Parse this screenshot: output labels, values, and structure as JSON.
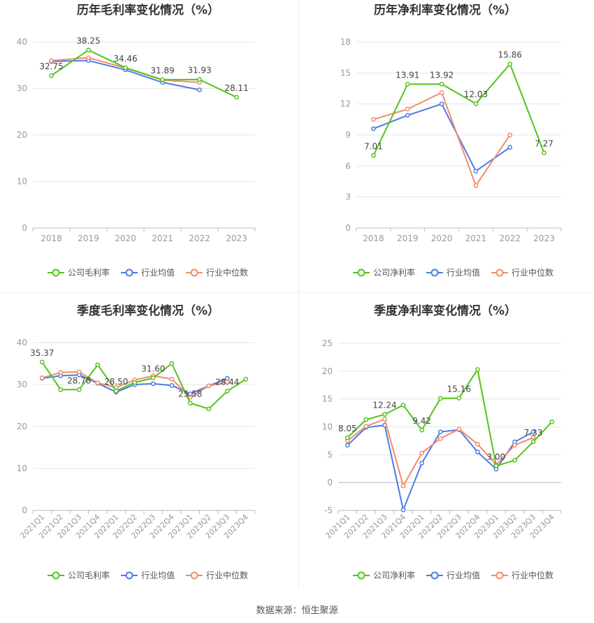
{
  "source": "数据来源：恒生聚源",
  "colors": {
    "company": "#52c41a",
    "avg": "#4b7be5",
    "median": "#f08c6a",
    "grid": "#e6e6e6",
    "axis": "#999999",
    "title": "#333333"
  },
  "chart_data": [
    {
      "type": "line",
      "title": "历年毛利率变化情况（%）",
      "categories": [
        "2018",
        "2019",
        "2020",
        "2021",
        "2022",
        "2023"
      ],
      "ylim": [
        0,
        40
      ],
      "yticks": [
        0,
        10,
        20,
        30,
        40
      ],
      "legend_placement": "bottom",
      "series": [
        {
          "name": "公司毛利率",
          "values": [
            32.75,
            38.25,
            34.46,
            31.89,
            31.93,
            28.11
          ],
          "labels": [
            "32.75",
            "38.25",
            "34.46",
            "31.89",
            "31.93",
            "28.11"
          ]
        },
        {
          "name": "行业均值",
          "values": [
            35.8,
            36.0,
            34.0,
            31.3,
            29.7,
            null
          ]
        },
        {
          "name": "行业中位数",
          "values": [
            36.0,
            36.6,
            34.4,
            31.8,
            31.3,
            null
          ]
        }
      ]
    },
    {
      "type": "line",
      "title": "历年净利率变化情况（%）",
      "categories": [
        "2018",
        "2019",
        "2020",
        "2021",
        "2022",
        "2023"
      ],
      "ylim": [
        0,
        18
      ],
      "yticks": [
        0,
        3,
        6,
        9,
        12,
        15,
        18
      ],
      "legend_placement": "bottom",
      "series": [
        {
          "name": "公司净利率",
          "values": [
            7.01,
            13.91,
            13.92,
            12.03,
            15.86,
            7.27
          ],
          "labels": [
            "7.01",
            "13.91",
            "13.92",
            "12.03",
            "15.86",
            "7.27"
          ]
        },
        {
          "name": "行业均值",
          "values": [
            9.6,
            10.9,
            12.0,
            5.5,
            7.8,
            null
          ]
        },
        {
          "name": "行业中位数",
          "values": [
            10.5,
            11.5,
            13.1,
            4.1,
            9.0,
            null
          ]
        }
      ]
    },
    {
      "type": "line",
      "title": "季度毛利率变化情况（%）",
      "categories": [
        "2021Q1",
        "2021Q2",
        "2021Q3",
        "2021Q4",
        "2022Q1",
        "2022Q2",
        "2022Q3",
        "2022Q4",
        "2023Q1",
        "2023Q2",
        "2023Q3",
        "2023Q4"
      ],
      "ylim": [
        0,
        40
      ],
      "yticks": [
        0,
        10,
        20,
        30,
        40
      ],
      "legend_placement": "bottom",
      "series": [
        {
          "name": "公司毛利率",
          "values": [
            35.37,
            28.8,
            28.78,
            34.7,
            28.5,
            30.5,
            31.6,
            35.0,
            25.58,
            24.2,
            28.44,
            31.3
          ],
          "labels": [
            "35.37",
            "",
            "28.78",
            "",
            "28.50",
            "",
            "31.60",
            "",
            "25.58",
            "",
            "28.44",
            ""
          ]
        },
        {
          "name": "行业均值",
          "values": [
            31.5,
            32.1,
            32.3,
            30.3,
            28.2,
            30.0,
            30.2,
            29.8,
            27.8,
            29.7,
            31.5,
            null
          ]
        },
        {
          "name": "行业中位数",
          "values": [
            31.6,
            32.9,
            33.0,
            30.4,
            29.3,
            31.1,
            32.1,
            31.3,
            27.0,
            29.7,
            30.6,
            null
          ]
        }
      ]
    },
    {
      "type": "line",
      "title": "季度净利率变化情况（%）",
      "categories": [
        "2021Q1",
        "2021Q2",
        "2021Q3",
        "2021Q4",
        "2022Q1",
        "2022Q2",
        "2022Q3",
        "2022Q4",
        "2023Q1",
        "2023Q2",
        "2023Q3",
        "2023Q4"
      ],
      "ylim": [
        -5,
        25
      ],
      "yticks": [
        -5,
        0,
        5,
        10,
        15,
        20,
        25
      ],
      "legend_placement": "bottom",
      "series": [
        {
          "name": "公司净利率",
          "values": [
            8.05,
            11.3,
            12.24,
            13.9,
            9.42,
            15.1,
            15.16,
            20.3,
            3.0,
            4.0,
            7.33,
            10.9
          ],
          "labels": [
            "8.05",
            "",
            "12.24",
            "",
            "9.42",
            "",
            "15.16",
            "",
            "3.00",
            "",
            "7.33",
            ""
          ]
        },
        {
          "name": "行业均值",
          "values": [
            6.7,
            9.9,
            10.3,
            -4.9,
            3.5,
            9.1,
            9.5,
            5.5,
            2.4,
            7.3,
            9.1,
            null
          ]
        },
        {
          "name": "行业中位数",
          "values": [
            7.5,
            10.1,
            11.4,
            -0.6,
            5.3,
            7.9,
            9.6,
            6.9,
            3.2,
            6.7,
            8.1,
            null
          ]
        }
      ]
    }
  ]
}
